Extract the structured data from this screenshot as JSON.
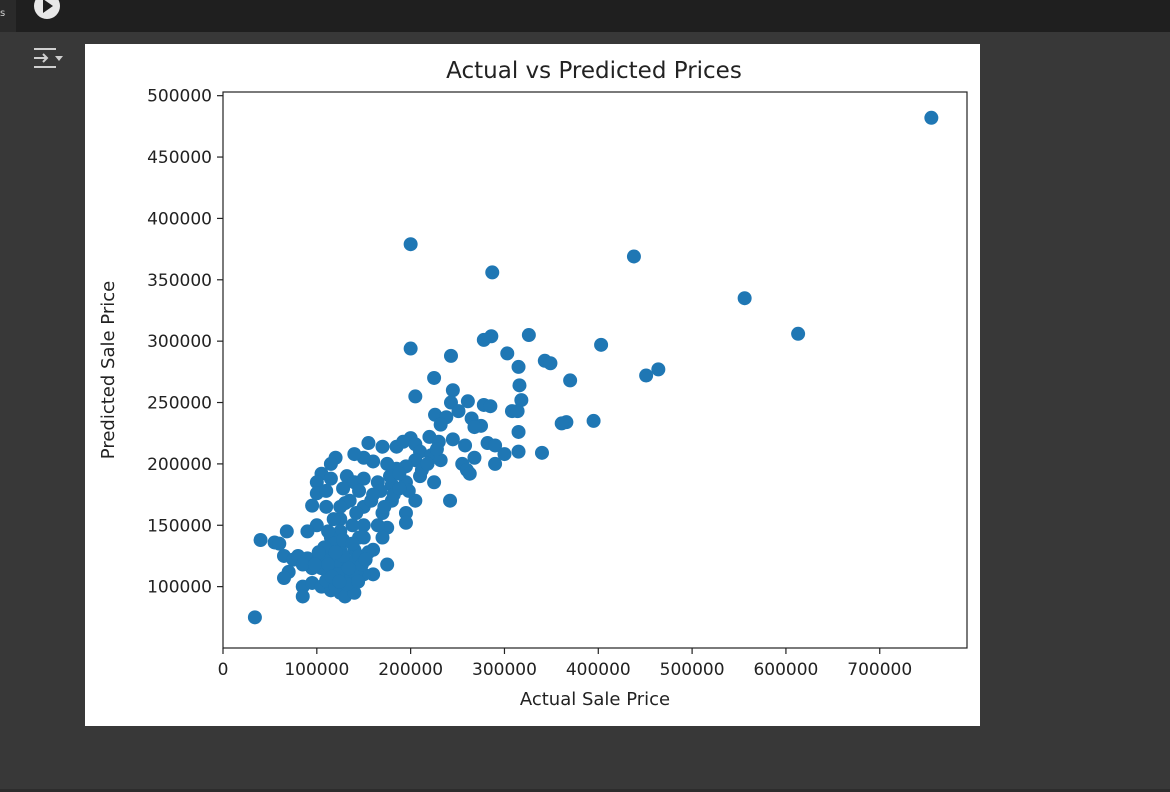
{
  "gutter": {
    "label": "s"
  },
  "toolbar": {
    "run_icon": "play-circle-icon",
    "output_icon": "output-toggle-icon"
  },
  "chart_data": {
    "type": "scatter",
    "title": "Actual vs Predicted Prices",
    "xlabel": "Actual Sale Price",
    "ylabel": "Predicted Sale Price",
    "xlim": [
      0,
      793000
    ],
    "ylim": [
      50000,
      503000
    ],
    "xticks": [
      0,
      100000,
      200000,
      300000,
      400000,
      500000,
      600000,
      700000
    ],
    "yticks": [
      100000,
      150000,
      200000,
      250000,
      300000,
      350000,
      400000,
      450000,
      500000
    ],
    "xtick_labels": [
      "0",
      "100000",
      "200000",
      "300000",
      "400000",
      "500000",
      "600000",
      "700000"
    ],
    "ytick_labels": [
      "100000",
      "150000",
      "200000",
      "250000",
      "300000",
      "350000",
      "400000",
      "450000",
      "500000"
    ],
    "grid": false,
    "color": "#1f77b4",
    "points": [
      [
        755000,
        482000
      ],
      [
        200000,
        379000
      ],
      [
        438000,
        369000
      ],
      [
        287000,
        356000
      ],
      [
        556000,
        335000
      ],
      [
        613000,
        306000
      ],
      [
        326000,
        305000
      ],
      [
        286000,
        304000
      ],
      [
        278000,
        301000
      ],
      [
        403000,
        297000
      ],
      [
        200000,
        294000
      ],
      [
        303000,
        290000
      ],
      [
        243000,
        288000
      ],
      [
        343000,
        284000
      ],
      [
        349000,
        282000
      ],
      [
        315000,
        279000
      ],
      [
        464000,
        277000
      ],
      [
        451000,
        272000
      ],
      [
        225000,
        270000
      ],
      [
        370000,
        268000
      ],
      [
        316000,
        264000
      ],
      [
        245000,
        260000
      ],
      [
        205000,
        255000
      ],
      [
        318000,
        252000
      ],
      [
        261000,
        251000
      ],
      [
        243000,
        250000
      ],
      [
        278000,
        248000
      ],
      [
        285000,
        247000
      ],
      [
        251000,
        243000
      ],
      [
        308000,
        243000
      ],
      [
        314000,
        243000
      ],
      [
        226000,
        240000
      ],
      [
        238000,
        238000
      ],
      [
        265000,
        237000
      ],
      [
        395000,
        235000
      ],
      [
        366000,
        234000
      ],
      [
        361000,
        233000
      ],
      [
        232000,
        232000
      ],
      [
        275000,
        231000
      ],
      [
        268000,
        230000
      ],
      [
        315000,
        226000
      ],
      [
        220000,
        222000
      ],
      [
        200000,
        221000
      ],
      [
        245000,
        220000
      ],
      [
        230000,
        218000
      ],
      [
        282000,
        217000
      ],
      [
        258000,
        215000
      ],
      [
        290000,
        215000
      ],
      [
        155000,
        217000
      ],
      [
        170000,
        214000
      ],
      [
        185000,
        214000
      ],
      [
        192000,
        218000
      ],
      [
        205000,
        216000
      ],
      [
        210000,
        210000
      ],
      [
        340000,
        209000
      ],
      [
        315000,
        210000
      ],
      [
        300000,
        208000
      ],
      [
        222000,
        207000
      ],
      [
        268000,
        205000
      ],
      [
        232000,
        203000
      ],
      [
        290000,
        200000
      ],
      [
        255000,
        200000
      ],
      [
        260000,
        195000
      ],
      [
        263000,
        192000
      ],
      [
        205000,
        203000
      ],
      [
        195000,
        198000
      ],
      [
        185000,
        196000
      ],
      [
        175000,
        200000
      ],
      [
        160000,
        202000
      ],
      [
        150000,
        205000
      ],
      [
        140000,
        208000
      ],
      [
        120000,
        205000
      ],
      [
        115000,
        200000
      ],
      [
        105000,
        192000
      ],
      [
        115000,
        188000
      ],
      [
        100000,
        185000
      ],
      [
        100000,
        176000
      ],
      [
        110000,
        178000
      ],
      [
        132000,
        190000
      ],
      [
        128000,
        180000
      ],
      [
        140000,
        185000
      ],
      [
        150000,
        188000
      ],
      [
        165000,
        185000
      ],
      [
        180000,
        183000
      ],
      [
        195000,
        185000
      ],
      [
        210000,
        190000
      ],
      [
        225000,
        185000
      ],
      [
        180000,
        170000
      ],
      [
        205000,
        170000
      ],
      [
        242000,
        170000
      ],
      [
        195000,
        160000
      ],
      [
        170000,
        160000
      ],
      [
        150000,
        165000
      ],
      [
        130000,
        168000
      ],
      [
        110000,
        165000
      ],
      [
        95000,
        166000
      ],
      [
        100000,
        150000
      ],
      [
        125000,
        155000
      ],
      [
        150000,
        150000
      ],
      [
        175000,
        148000
      ],
      [
        195000,
        152000
      ],
      [
        170000,
        140000
      ],
      [
        145000,
        140000
      ],
      [
        125000,
        145000
      ],
      [
        115000,
        140000
      ],
      [
        90000,
        145000
      ],
      [
        68000,
        145000
      ],
      [
        40000,
        138000
      ],
      [
        55000,
        136000
      ],
      [
        60000,
        135000
      ],
      [
        65000,
        125000
      ],
      [
        75000,
        122000
      ],
      [
        80000,
        125000
      ],
      [
        90000,
        123000
      ],
      [
        100000,
        120000
      ],
      [
        110000,
        125000
      ],
      [
        125000,
        130000
      ],
      [
        140000,
        130000
      ],
      [
        160000,
        130000
      ],
      [
        175000,
        118000
      ],
      [
        160000,
        110000
      ],
      [
        150000,
        110000
      ],
      [
        135000,
        110000
      ],
      [
        125000,
        115000
      ],
      [
        115000,
        112000
      ],
      [
        105000,
        115000
      ],
      [
        95000,
        115000
      ],
      [
        85000,
        118000
      ],
      [
        70000,
        112000
      ],
      [
        65000,
        107000
      ],
      [
        85000,
        100000
      ],
      [
        85000,
        92000
      ],
      [
        95000,
        103000
      ],
      [
        105000,
        100000
      ],
      [
        115000,
        97000
      ],
      [
        125000,
        95000
      ],
      [
        130000,
        92000
      ],
      [
        140000,
        95000
      ],
      [
        110000,
        105000
      ],
      [
        120000,
        100000
      ],
      [
        130000,
        108000
      ],
      [
        135000,
        120000
      ],
      [
        120000,
        120000
      ],
      [
        118000,
        135000
      ],
      [
        128000,
        138000
      ],
      [
        138000,
        150000
      ],
      [
        142000,
        160000
      ],
      [
        158000,
        170000
      ],
      [
        168000,
        178000
      ],
      [
        178000,
        190000
      ],
      [
        188000,
        192000
      ],
      [
        198000,
        178000
      ],
      [
        212000,
        195000
      ],
      [
        218000,
        200000
      ],
      [
        228000,
        212000
      ],
      [
        145000,
        125000
      ],
      [
        150000,
        140000
      ],
      [
        155000,
        128000
      ],
      [
        165000,
        150000
      ],
      [
        172000,
        165000
      ],
      [
        182000,
        175000
      ],
      [
        188000,
        180000
      ],
      [
        160000,
        175000
      ],
      [
        145000,
        178000
      ],
      [
        135000,
        170000
      ],
      [
        125000,
        165000
      ],
      [
        118000,
        155000
      ],
      [
        112000,
        145000
      ],
      [
        108000,
        132000
      ],
      [
        102000,
        128000
      ],
      [
        98000,
        118000
      ],
      [
        112000,
        118000
      ],
      [
        122000,
        110000
      ],
      [
        132000,
        102000
      ],
      [
        142000,
        112000
      ],
      [
        148000,
        118000
      ],
      [
        138000,
        135000
      ],
      [
        128000,
        125000
      ],
      [
        120000,
        128000
      ],
      [
        116000,
        108000
      ],
      [
        124000,
        104000
      ],
      [
        134000,
        115000
      ],
      [
        144000,
        104000
      ],
      [
        152000,
        122000
      ],
      [
        34000,
        75000
      ]
    ]
  }
}
